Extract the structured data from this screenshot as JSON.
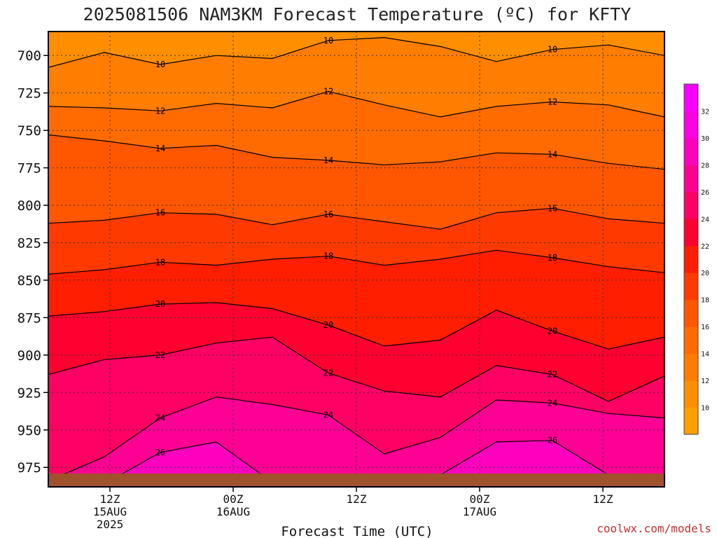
{
  "chart_data": {
    "type": "heatmap",
    "title": "2025081506 NAM3KM Forecast Temperature (ºC) for KFTY",
    "xlabel": "Forecast Time (UTC)",
    "ylabel": "",
    "y_axis": {
      "unit": "hPa",
      "ticks": [
        "700",
        "725",
        "750",
        "775",
        "800",
        "825",
        "850",
        "875",
        "900",
        "925",
        "950",
        "975"
      ],
      "ylim": [
        988,
        684
      ],
      "inverted": true
    },
    "x_axis": {
      "ticks": [
        {
          "hour": 6,
          "label": "12Z",
          "date": "15AUG",
          "year": "2025"
        },
        {
          "hour": 18,
          "label": "00Z",
          "date": "16AUG",
          "year": ""
        },
        {
          "hour": 30,
          "label": "12Z",
          "date": "",
          "year": ""
        },
        {
          "hour": 42,
          "label": "00Z",
          "date": "17AUG",
          "year": ""
        },
        {
          "hour": 54,
          "label": "12Z",
          "date": "",
          "year": ""
        }
      ],
      "xlim_hours_after_init": [
        0,
        60
      ]
    },
    "grid": true,
    "colorbar": {
      "placement": "right",
      "levels": [
        8,
        10,
        12,
        14,
        16,
        18,
        20,
        22,
        24,
        26,
        28,
        30,
        32,
        34
      ],
      "tick_labels": [
        "10",
        "12",
        "14",
        "16",
        "18",
        "20",
        "22",
        "24",
        "26",
        "28",
        "30",
        "32"
      ],
      "colors": [
        "#ff9f00",
        "#ff8f00",
        "#ff7d00",
        "#ff6b00",
        "#ff5600",
        "#ff3a00",
        "#ff1e00",
        "#ff0030",
        "#ff0064",
        "#ff0094",
        "#ff00bf",
        "#ff00e2",
        "#f800ff"
      ]
    },
    "isotherms": [
      {
        "value": 10,
        "pressure": [
          708,
          698,
          706,
          700,
          702,
          690,
          688,
          694,
          704,
          696,
          693,
          700
        ]
      },
      {
        "value": 12,
        "pressure": [
          734,
          735,
          737,
          732,
          735,
          724,
          733,
          741,
          734,
          731,
          733,
          741
        ]
      },
      {
        "value": 14,
        "pressure": [
          753,
          757,
          762,
          760,
          768,
          770,
          773,
          771,
          765,
          766,
          772,
          776
        ]
      },
      {
        "value": 16,
        "pressure": [
          812,
          810,
          805,
          806,
          813,
          806,
          811,
          816,
          805,
          802,
          809,
          812
        ]
      },
      {
        "value": 18,
        "pressure": [
          846,
          843,
          838,
          840,
          836,
          834,
          840,
          836,
          830,
          835,
          841,
          845
        ]
      },
      {
        "value": 20,
        "pressure": [
          874,
          871,
          866,
          865,
          869,
          880,
          894,
          890,
          870,
          884,
          896,
          888
        ]
      },
      {
        "value": 22,
        "pressure": [
          913,
          903,
          900,
          892,
          888,
          912,
          924,
          928,
          907,
          913,
          931,
          914
        ]
      },
      {
        "value": 24,
        "pressure": [
          984,
          968,
          942,
          928,
          933,
          940,
          966,
          955,
          930,
          932,
          939,
          942
        ]
      },
      {
        "value": 26,
        "pressure": [
          990,
          986,
          965,
          958,
          985,
          990,
          990,
          980,
          958,
          957,
          980,
          990
        ]
      }
    ],
    "contour_labels": [
      "10",
      "10",
      "10",
      "10",
      "12",
      "12",
      "12",
      "14",
      "14",
      "14",
      "16",
      "16",
      "16",
      "18",
      "18",
      "18",
      "18",
      "20",
      "20",
      "20",
      "20",
      "22",
      "22",
      "22",
      "24",
      "24",
      "26"
    ],
    "surface_color": "#a0522d"
  },
  "credit": "coolwx.com/models"
}
